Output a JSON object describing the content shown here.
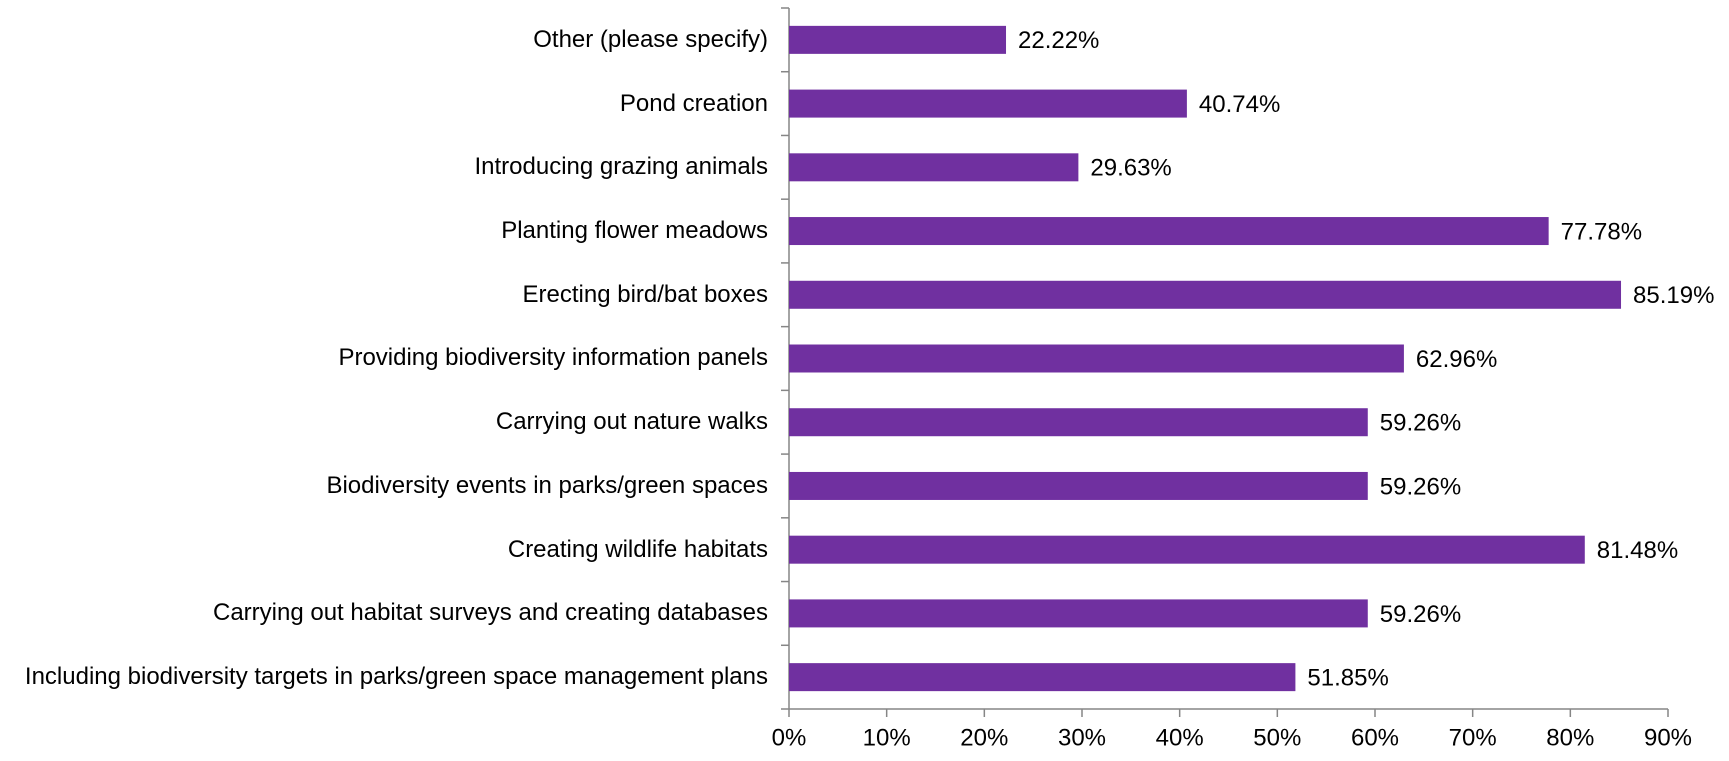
{
  "chart_data": {
    "type": "barh",
    "categories": [
      "Other (please specify)",
      "Pond creation",
      "Introducing grazing animals",
      "Planting flower meadows",
      "Erecting bird/bat boxes",
      "Providing biodiversity information panels",
      "Carrying out nature walks",
      "Biodiversity events in parks/green spaces",
      "Creating wildlife habitats",
      "Carrying out habitat surveys and creating databases",
      "Including biodiversity targets in parks/green space management plans"
    ],
    "values": [
      22.22,
      40.74,
      29.63,
      77.78,
      85.19,
      62.96,
      59.26,
      59.26,
      81.48,
      59.26,
      51.85
    ],
    "value_labels": [
      "22.22%",
      "40.74%",
      "29.63%",
      "77.78%",
      "85.19%",
      "62.96%",
      "59.26%",
      "59.26%",
      "81.48%",
      "59.26%",
      "51.85%"
    ],
    "color": "#7030a0",
    "xlim": [
      0,
      90
    ],
    "xticks": [
      {
        "value": 0,
        "label": "0%"
      },
      {
        "value": 10,
        "label": "10%"
      },
      {
        "value": 20,
        "label": "20%"
      },
      {
        "value": 30,
        "label": "30%"
      },
      {
        "value": 40,
        "label": "40%"
      },
      {
        "value": 50,
        "label": "50%"
      },
      {
        "value": 60,
        "label": "60%"
      },
      {
        "value": 70,
        "label": "70%"
      },
      {
        "value": 80,
        "label": "80%"
      },
      {
        "value": 90,
        "label": "90%"
      }
    ],
    "grid": false
  }
}
